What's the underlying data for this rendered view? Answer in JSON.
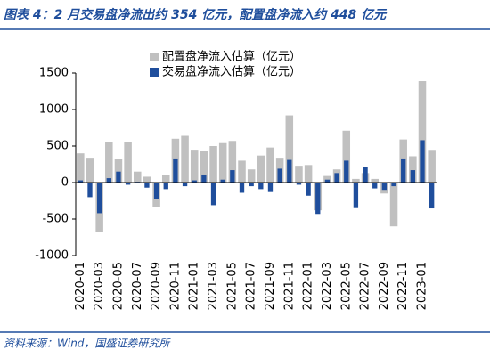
{
  "chart_data": {
    "type": "bar",
    "title": "图表 4：2 月交易盘净流出约 354 亿元，配置盘净流入约 448 亿元",
    "source": "资料来源：Wind，国盛证券研究所",
    "categories": [
      "2020-01",
      null,
      "2020-03",
      null,
      "2020-05",
      null,
      "2020-07",
      null,
      "2020-09",
      null,
      "2020-11",
      null,
      "2021-01",
      null,
      "2021-03",
      null,
      "2021-05",
      null,
      "2021-07",
      null,
      "2021-09",
      null,
      "2021-11",
      null,
      "2022-01",
      null,
      "2022-03",
      null,
      "2022-05",
      null,
      "2022-07",
      null,
      "2022-09",
      null,
      "2022-11",
      null,
      "2023-01",
      null
    ],
    "series": [
      {
        "name": "配置盘净流入估算（亿元）",
        "color": "#c0c0c0",
        "values": [
          400,
          340,
          -680,
          550,
          320,
          560,
          150,
          80,
          -330,
          100,
          600,
          640,
          450,
          430,
          500,
          540,
          570,
          300,
          180,
          370,
          480,
          340,
          920,
          230,
          240,
          -380,
          90,
          180,
          710,
          50,
          130,
          50,
          -150,
          -600,
          590,
          360,
          1390,
          448
        ]
      },
      {
        "name": "交易盘净流入估算（亿元）",
        "color": "#1f4e9c",
        "values": [
          30,
          -200,
          -420,
          60,
          150,
          -30,
          10,
          -70,
          -230,
          -90,
          330,
          -50,
          30,
          110,
          -310,
          40,
          170,
          -140,
          -50,
          -90,
          -130,
          190,
          310,
          -30,
          -180,
          -430,
          40,
          130,
          300,
          -350,
          210,
          -80,
          -100,
          -50,
          330,
          170,
          580,
          -354
        ]
      }
    ],
    "ylim": [
      -1000,
      1500
    ],
    "yticks": [
      -1000,
      -500,
      0,
      500,
      1000,
      1500
    ]
  }
}
